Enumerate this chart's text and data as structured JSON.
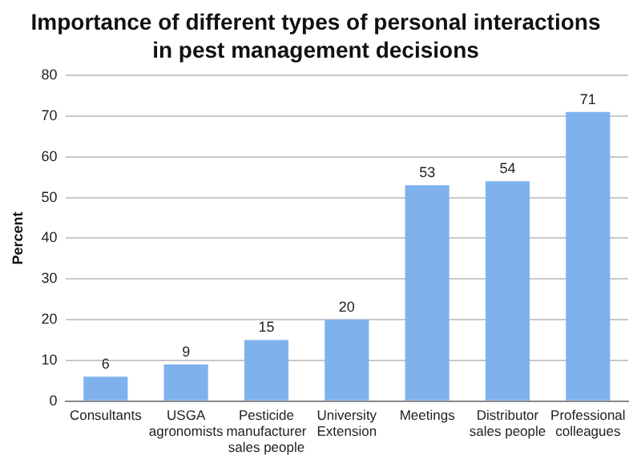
{
  "chart_data": {
    "type": "bar",
    "title": "Importance of different types of personal interactions\nin pest management decisions",
    "ylabel": "Percent",
    "categories": [
      "Consultants",
      "USGA\nagronomists",
      "Pesticide\nmanufacturer\nsales people",
      "University\nExtension",
      "Meetings",
      "Distributor\nsales people",
      "Professional\ncolleagues"
    ],
    "values": [
      6,
      9,
      15,
      20,
      53,
      54,
      71
    ],
    "color": "#7fb2ec",
    "ylim": [
      0,
      80
    ],
    "yticks": [
      0,
      10,
      20,
      30,
      40,
      50,
      60,
      70,
      80
    ],
    "grid": "y",
    "data_labels": true,
    "legend": false
  }
}
